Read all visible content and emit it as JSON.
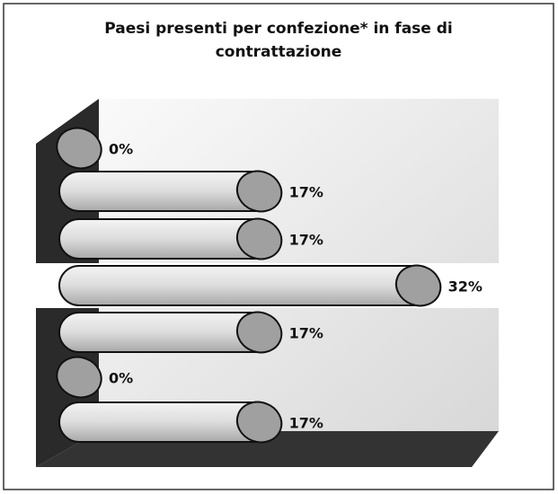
{
  "chart_data": {
    "type": "bar",
    "orientation": "horizontal",
    "title": "Paesi presenti per confezione* in fase di contrattazione",
    "categories": [
      null,
      null,
      null,
      null,
      null,
      null,
      null
    ],
    "values": [
      0,
      17,
      17,
      32,
      17,
      0,
      17
    ],
    "value_labels": [
      "0%",
      "17%",
      "17%",
      "32%",
      "17%",
      "0%",
      "17%"
    ],
    "color": "#c8c8c8",
    "xlim": [
      0,
      35
    ]
  }
}
